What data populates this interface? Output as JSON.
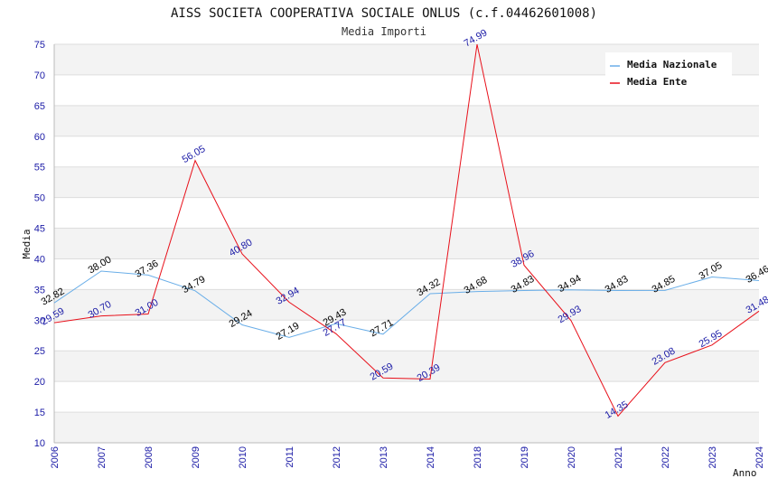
{
  "chart_data": {
    "type": "line",
    "title": "AISS SOCIETA COOPERATIVA SOCIALE ONLUS (c.f.04462601008)",
    "subtitle": "Media Importi",
    "xlabel": "Anno",
    "ylabel": "Media",
    "ylim": [
      10,
      75
    ],
    "yticks": [
      "10",
      "15",
      "20",
      "25",
      "30",
      "35",
      "40",
      "45",
      "50",
      "55",
      "60",
      "65",
      "70",
      "75"
    ],
    "categories": [
      "2006",
      "2007",
      "2008",
      "2009",
      "2010",
      "2011",
      "2012",
      "2013",
      "2014",
      "2018",
      "2019",
      "2020",
      "2021",
      "2022",
      "2023",
      "2024"
    ],
    "grid": true,
    "legend_position": "top-right",
    "series": [
      {
        "name": "Media Nazionale",
        "color": "#6aaee8",
        "label_color": "#000000",
        "values": [
          32.82,
          38.0,
          37.36,
          34.79,
          29.24,
          27.19,
          29.43,
          27.71,
          34.32,
          34.68,
          34.83,
          34.94,
          34.83,
          34.85,
          37.05,
          36.46
        ],
        "labels": [
          "32.82",
          "38.00",
          "37.36",
          "34.79",
          "29.24",
          "27.19",
          "29.43",
          "27.71",
          "34.32",
          "34.68",
          "34.83",
          "34.94",
          "34.83",
          "34.85",
          "37.05",
          "36.46"
        ]
      },
      {
        "name": "Media Ente",
        "color": "#e8101a",
        "label_color": "#1a1aa6",
        "values": [
          29.59,
          30.7,
          31.0,
          56.05,
          40.8,
          32.94,
          27.77,
          20.59,
          20.39,
          74.99,
          38.96,
          29.93,
          14.35,
          23.08,
          25.95,
          31.48
        ],
        "labels": [
          "29.59",
          "30.70",
          "31.00",
          "56.05",
          "40.80",
          "32.94",
          "27.77",
          "20.59",
          "20.39",
          "74.99",
          "38.96",
          "29.93",
          "14.35",
          "23.08",
          "25.95",
          "31.48"
        ]
      }
    ]
  }
}
